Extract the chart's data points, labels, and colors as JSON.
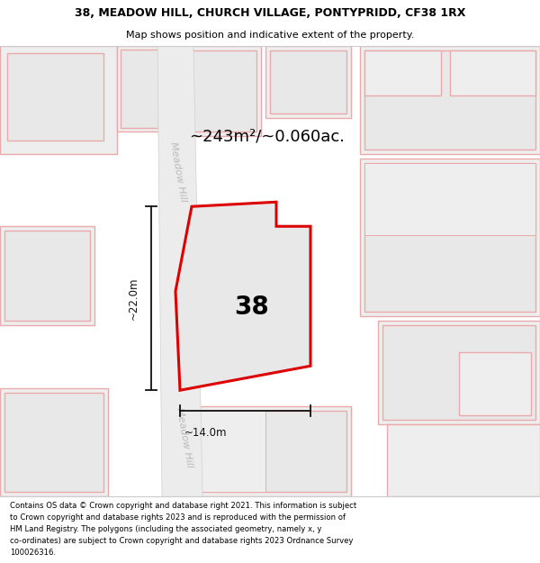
{
  "title_line1": "38, MEADOW HILL, CHURCH VILLAGE, PONTYPRIDD, CF38 1RX",
  "title_line2": "Map shows position and indicative extent of the property.",
  "area_text": "~243m²/~0.060ac.",
  "label_38": "38",
  "dim_vertical": "~22.0m",
  "dim_horizontal": "~14.0m",
  "road_label": "Meadow Hill",
  "copyright_text": "Contains OS data © Crown copyright and database right 2021. This information is subject\nto Crown copyright and database rights 2023 and is reproduced with the permission of\nHM Land Registry. The polygons (including the associated geometry, namely x, y\nco-ordinates) are subject to Crown copyright and database rights 2023 Ordnance Survey\n100026316.",
  "map_bg": "#f7f7f7",
  "parcel_fill": "#eeeeee",
  "parcel_edge": "#e8aaaa",
  "inner_fill": "#e8e8e8",
  "road_fill": "#f0f0f0",
  "road_edge": "#d8d8d8",
  "property_fill": "#e8e8e8",
  "property_edge": "#dd0000",
  "white": "#ffffff",
  "dim_color": "#111111",
  "text_gray": "#bbbbbb"
}
